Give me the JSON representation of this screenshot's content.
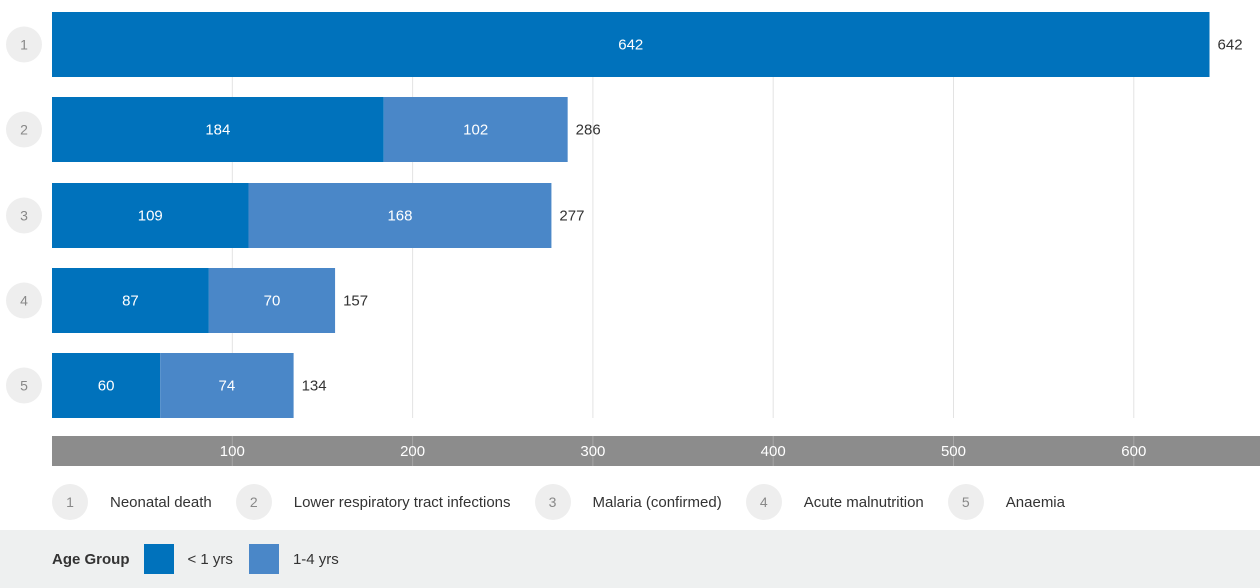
{
  "chart_data": {
    "type": "bar",
    "orientation": "horizontal",
    "stacked": true,
    "categories": [
      "1",
      "2",
      "3",
      "4",
      "5"
    ],
    "series": [
      {
        "name": "< 1 yrs",
        "values": [
          642,
          184,
          109,
          87,
          60
        ],
        "color": "#0072BC"
      },
      {
        "name": "1-4 yrs",
        "values": [
          0,
          102,
          168,
          70,
          74
        ],
        "color": "#4A87C8"
      }
    ],
    "totals": [
      642,
      286,
      277,
      157,
      134
    ],
    "xticks": [
      "100",
      "200",
      "300",
      "400",
      "500",
      "600"
    ],
    "xlim": [
      0,
      670
    ],
    "grid": true
  },
  "diagnosis_legend": [
    {
      "number": "1",
      "label": "Neonatal death"
    },
    {
      "number": "2",
      "label": "Lower respiratory tract infections"
    },
    {
      "number": "3",
      "label": "Malaria (confirmed)"
    },
    {
      "number": "4",
      "label": "Acute malnutrition"
    },
    {
      "number": "5",
      "label": "Anaemia"
    }
  ],
  "age_legend": {
    "title": "Age Group",
    "items": [
      {
        "label": "< 1 yrs",
        "color": "#0072BC"
      },
      {
        "label": "1-4 yrs",
        "color": "#4A87C8"
      }
    ]
  },
  "colors": {
    "axis_band": "#8C8C8C",
    "badge_bg": "#EEEEEE",
    "panel_bg": "#EEF0F0"
  }
}
